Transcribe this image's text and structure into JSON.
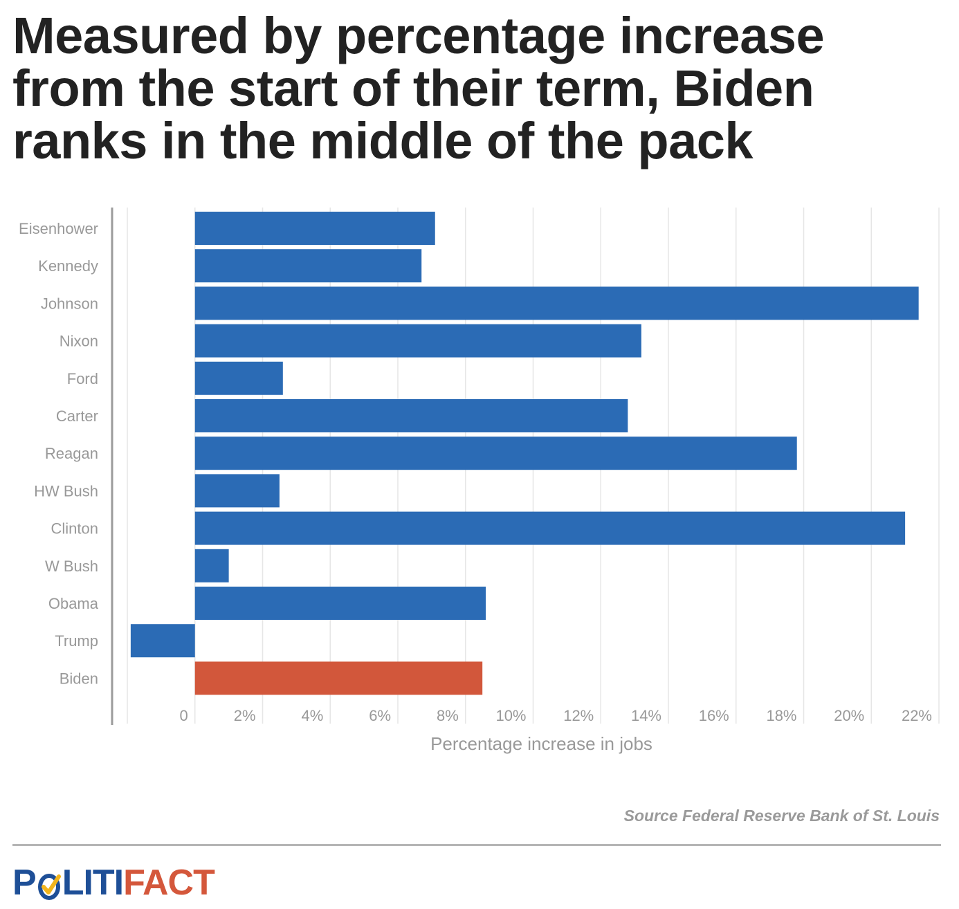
{
  "title": "Measured by percentage increase from the start of their term, Biden ranks in the middle of the pack",
  "source": "Source Federal Reserve Bank of St. Louis",
  "logo": {
    "text": "POLITIFACT",
    "part1": "P",
    "part2": "LITI",
    "part3": "FACT",
    "colors": {
      "blue": "#1e4f97",
      "orange": "#d4573b",
      "check": "#f2b51c"
    }
  },
  "colors": {
    "bar": "#2b6bb5",
    "highlight": "#d2573b",
    "grid": "#e6e6e6",
    "axis": "#9b9b9b",
    "label": "#999999"
  },
  "chart_data": {
    "type": "bar",
    "orientation": "horizontal",
    "categories": [
      "Eisenhower",
      "Kennedy",
      "Johnson",
      "Nixon",
      "Ford",
      "Carter",
      "Reagan",
      "HW Bush",
      "Clinton",
      "W Bush",
      "Obama",
      "Trump",
      "Biden"
    ],
    "values": [
      7.1,
      6.7,
      21.4,
      13.2,
      2.6,
      12.8,
      17.8,
      2.5,
      21.0,
      1.0,
      8.6,
      -1.9,
      8.5
    ],
    "highlight": "Biden",
    "xlabel": "Percentage increase in jobs",
    "xlim": [
      -2,
      22
    ],
    "xticks": [
      0,
      2,
      4,
      6,
      8,
      10,
      12,
      14,
      16,
      18,
      20,
      22
    ],
    "xtick_labels": [
      "0",
      "2%",
      "4%",
      "6%",
      "8%",
      "10%",
      "12%",
      "14%",
      "16%",
      "18%",
      "20%",
      "22%"
    ],
    "grid": true
  }
}
